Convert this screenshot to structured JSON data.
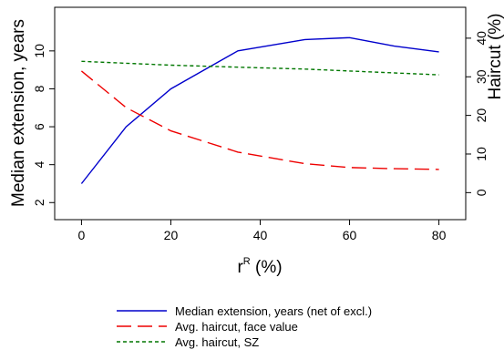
{
  "chart_data": {
    "type": "line",
    "x": [
      0,
      10,
      20,
      35,
      50,
      60,
      70,
      80
    ],
    "xticks": [
      0,
      20,
      40,
      60,
      80
    ],
    "xlim": [
      -6,
      86
    ],
    "xlabel": {
      "base": "r",
      "sup": "R",
      "suffix": " (%)"
    },
    "y_left": {
      "label": "Median extension, years",
      "ticks": [
        2,
        4,
        6,
        8,
        10
      ],
      "lim": [
        1.1,
        12.3
      ]
    },
    "y_right": {
      "label": "Haircut (%)",
      "ticks": [
        0,
        10,
        20,
        30,
        40
      ],
      "lim": [
        -7,
        48
      ]
    },
    "series": [
      {
        "name": "Median extension, years (net of excl.)",
        "axis": "left",
        "color": "#0000cc",
        "dash": "solid",
        "values": [
          3.0,
          6.0,
          8.0,
          10.0,
          10.6,
          10.7,
          10.25,
          9.95
        ]
      },
      {
        "name": "Avg. haircut, face value",
        "axis": "right",
        "color": "#ee0000",
        "dash": "long-dash",
        "values": [
          31.5,
          22.0,
          16.0,
          10.5,
          7.5,
          6.5,
          6.2,
          6.0
        ]
      },
      {
        "name": "Avg. haircut, SZ",
        "axis": "right",
        "color": "#007700",
        "dash": "short-dash",
        "values": [
          34.0,
          33.5,
          33.0,
          32.5,
          32.0,
          31.5,
          31.0,
          30.5
        ]
      }
    ],
    "legend_position": "bottom",
    "grid": false
  }
}
